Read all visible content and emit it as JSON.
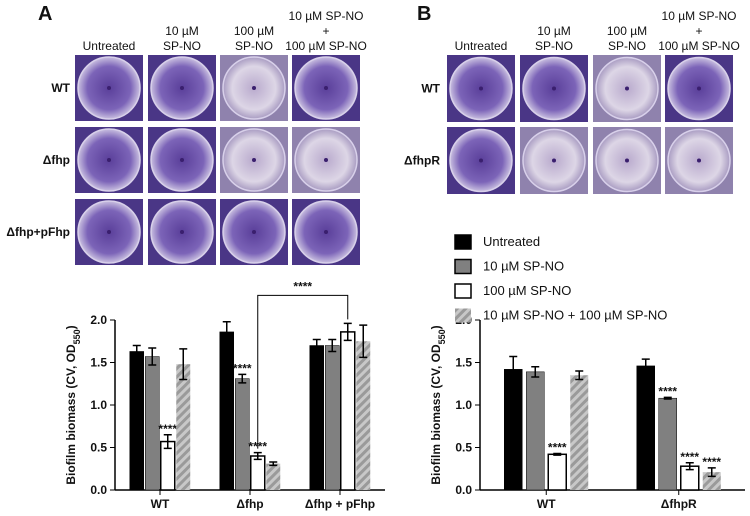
{
  "panels": [
    {
      "label": "A",
      "columns": [
        [
          "Untreated"
        ],
        [
          "10 µM",
          "SP-NO"
        ],
        [
          "100 µM",
          "SP-NO"
        ],
        [
          "10 µM SP-NO",
          "+",
          "100 µM SP-NO"
        ]
      ],
      "rows": [
        "WT",
        "Δfhp",
        "Δfhp+pFhp"
      ]
    },
    {
      "label": "B",
      "columns": [
        [
          "Untreated"
        ],
        [
          "10 µM",
          "SP-NO"
        ],
        [
          "100 µM",
          "SP-NO"
        ],
        [
          "10 µM SP-NO",
          "+",
          "100 µM SP-NO"
        ]
      ],
      "rows": [
        "WT",
        "ΔfhpR"
      ]
    }
  ],
  "chart_data": [
    {
      "type": "bar",
      "ylabel": [
        "Biofilm biomass (CV, OD",
        "550",
        ")"
      ],
      "categories": [
        "WT",
        "Δfhp",
        "Δfhp + pFhp"
      ],
      "ylim": [
        0,
        2.0
      ],
      "yticks": [
        {
          "value": 0,
          "label": "0.0"
        },
        0.5,
        {
          "value": 1.0,
          "label": "1.0"
        },
        1.5,
        {
          "value": 2.0,
          "label": "2.0"
        }
      ],
      "legend": false,
      "series": [
        {
          "color": "#000000",
          "values": [
            1.63,
            1.86,
            1.7
          ],
          "errors": [
            0.07,
            0.12,
            0.07
          ],
          "significance": [
            null,
            null,
            null
          ]
        },
        {
          "color": "#808080",
          "values": [
            1.57,
            1.31,
            1.7
          ],
          "errors": [
            0.1,
            0.05,
            0.07
          ],
          "significance": [
            null,
            "****",
            null
          ]
        },
        {
          "color": "#ffffff",
          "values": [
            0.57,
            0.4,
            1.86
          ],
          "errors": [
            0.08,
            0.04,
            0.1
          ],
          "significance": [
            "****",
            "****",
            null
          ]
        },
        {
          "color": "#b8b8b8",
          "pattern": "hatch",
          "values": [
            1.48,
            0.31,
            1.75
          ],
          "errors": [
            0.18,
            0.02,
            0.19
          ],
          "significance": [
            null,
            null,
            null
          ]
        }
      ],
      "comparisons": [
        {
          "label": "****",
          "series": 2,
          "categories": [
            1,
            2
          ]
        }
      ]
    },
    {
      "type": "bar",
      "ylabel": [
        "Biofilm biomass (CV, OD",
        "550",
        ")"
      ],
      "categories": [
        "WT",
        "ΔfhpR"
      ],
      "ylim": [
        0,
        2.0
      ],
      "yticks": [
        {
          "value": 0,
          "label": "0.0"
        },
        0.5,
        {
          "value": 1.0,
          "label": "1.0"
        },
        1.5,
        {
          "value": 2.0,
          "label": "2.0"
        }
      ],
      "legend": true,
      "series": [
        {
          "name": "Untreated",
          "color": "#000000",
          "values": [
            1.42,
            1.46
          ],
          "errors": [
            0.15,
            0.08
          ],
          "significance": [
            null,
            null
          ]
        },
        {
          "name": "10 µM SP-NO",
          "color": "#808080",
          "values": [
            1.39,
            1.08
          ],
          "errors": [
            0.06,
            0.01
          ],
          "significance": [
            null,
            "****"
          ]
        },
        {
          "name": "100 µM SP-NO",
          "color": "#ffffff",
          "values": [
            0.42,
            0.28
          ],
          "errors": [
            0.01,
            0.04
          ],
          "significance": [
            "****",
            "****"
          ]
        },
        {
          "name": "10 µM SP-NO + 100 µM SP-NO",
          "color": "#b8b8b8",
          "pattern": "hatch",
          "values": [
            1.35,
            0.21
          ],
          "errors": [
            0.05,
            0.05
          ],
          "significance": [
            null,
            "****"
          ]
        }
      ]
    }
  ]
}
